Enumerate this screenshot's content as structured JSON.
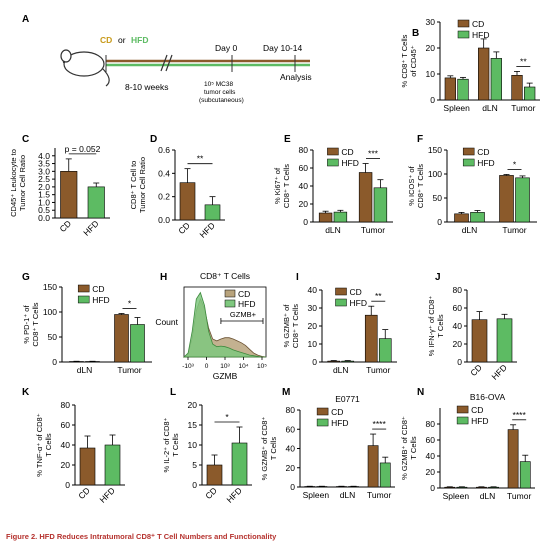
{
  "colors": {
    "cd": "#8B5A2B",
    "hfd": "#5DBB63",
    "sig": "#111111",
    "hist_cd": "#b8a37c",
    "hist_hfd": "#7fc87f",
    "diet_line_cd": "#8B5A2B",
    "diet_line_hfd": "#5DBB63",
    "caption": "#b5322e"
  },
  "schematic": {
    "label": "A",
    "cd": "CD",
    "or": "or",
    "hfd": "HFD",
    "weeks": "8-10 weeks",
    "day0": "Day 0",
    "day_end": "Day 10-14",
    "analysis": "Analysis",
    "cells_line1": "10⁵ MC38",
    "cells_line2": "tumor cells",
    "cells_line3": "(subcutaneous)"
  },
  "caption": {
    "title": "Figure 2.  HFD Reduces Intratumoral CD8⁺ T Cell Numbers and Functionality"
  },
  "chart_data": [
    {
      "panel": "B",
      "type": "bar",
      "ylabel_line1": "% CD8⁺ T Cells",
      "ylabel_line2": "of CD45⁺",
      "categories": [
        "Spleen",
        "dLN",
        "Tumor"
      ],
      "ylim": [
        0,
        30
      ],
      "yticks": [
        0,
        10,
        20,
        30
      ],
      "legend": [
        "CD",
        "HFD"
      ],
      "series": [
        {
          "name": "CD",
          "values": [
            8.5,
            20,
            9.5
          ],
          "errors": [
            0.8,
            3.5,
            1.5
          ]
        },
        {
          "name": "HFD",
          "values": [
            8,
            16,
            5
          ],
          "errors": [
            0.7,
            2.5,
            1.5
          ]
        }
      ],
      "sig": [
        {
          "cat": 2,
          "label": "**"
        }
      ]
    },
    {
      "panel": "C",
      "type": "bar",
      "ylabel_line1": "CD45⁺ Leukocyte to",
      "ylabel_line2": "Tumor Cell Ratio",
      "categories": [
        "CD",
        "HFD"
      ],
      "ylim": [
        0,
        4.5
      ],
      "yticks": [
        0.0,
        0.5,
        1.0,
        1.5,
        2.0,
        2.5,
        3.0,
        3.5,
        4.0
      ],
      "yticklabels": [
        "0.0",
        "0.5",
        "1.0",
        "1.5",
        "2.0",
        "2.5",
        "3.0",
        "3.5",
        "4.0"
      ],
      "values": [
        3.0,
        2.0
      ],
      "errors": [
        0.8,
        0.25
      ],
      "sig": [
        {
          "label": "p = 0.052"
        }
      ]
    },
    {
      "panel": "D",
      "type": "bar",
      "ylabel_line1": "CD8⁺ T Cell to",
      "ylabel_line2": "Tumor Cell Ratio",
      "categories": [
        "CD",
        "HFD"
      ],
      "ylim": [
        0,
        0.6
      ],
      "yticks": [
        0,
        0.2,
        0.4,
        0.6
      ],
      "yticklabels": [
        "0.0",
        "0.2",
        "0.4",
        "0.6"
      ],
      "values": [
        0.32,
        0.13
      ],
      "errors": [
        0.12,
        0.07
      ],
      "sig": [
        {
          "label": "**"
        }
      ]
    },
    {
      "panel": "E",
      "type": "bar",
      "ylabel_line1": "% Ki67⁺ of",
      "ylabel_line2": "CD8⁺ T Cells",
      "categories": [
        "dLN",
        "Tumor"
      ],
      "ylim": [
        0,
        80
      ],
      "yticks": [
        0,
        20,
        40,
        60,
        80
      ],
      "legend": [
        "CD",
        "HFD"
      ],
      "series": [
        {
          "name": "CD",
          "values": [
            10,
            55
          ],
          "errors": [
            2,
            10
          ]
        },
        {
          "name": "HFD",
          "values": [
            11,
            38
          ],
          "errors": [
            2,
            9
          ]
        }
      ],
      "sig": [
        {
          "cat": 1,
          "label": "***"
        }
      ]
    },
    {
      "panel": "F",
      "type": "bar",
      "ylabel_line1": "% ICOS⁺ of",
      "ylabel_line2": "CD8⁺ T Cells",
      "categories": [
        "dLN",
        "Tumor"
      ],
      "ylim": [
        0,
        150
      ],
      "yticks": [
        0,
        50,
        100,
        150
      ],
      "legend": [
        "CD",
        "HFD"
      ],
      "series": [
        {
          "name": "CD",
          "values": [
            17,
            97
          ],
          "errors": [
            3,
            2
          ]
        },
        {
          "name": "HFD",
          "values": [
            20,
            92
          ],
          "errors": [
            4,
            4
          ]
        }
      ],
      "sig": [
        {
          "cat": 1,
          "label": "*"
        }
      ]
    },
    {
      "panel": "G",
      "type": "bar",
      "ylabel_line1": "% PD-1⁺ of",
      "ylabel_line2": "CD8⁺ T Cells",
      "categories": [
        "dLN",
        "Tumor"
      ],
      "ylim": [
        0,
        150
      ],
      "yticks": [
        0,
        50,
        100,
        150
      ],
      "legend": [
        "CD",
        "HFD"
      ],
      "series": [
        {
          "name": "CD",
          "values": [
            1,
            95
          ],
          "errors": [
            0.5,
            2
          ]
        },
        {
          "name": "HFD",
          "values": [
            1,
            75
          ],
          "errors": [
            0.5,
            14
          ]
        }
      ],
      "sig": [
        {
          "cat": 1,
          "label": "*"
        }
      ]
    },
    {
      "panel": "H",
      "type": "area",
      "title": "CD8⁺ T Cells",
      "ylabel": "Count",
      "xlabel": "GZMB",
      "xticks": [
        "-10³",
        "0",
        "10³",
        "10⁴",
        "10⁵"
      ],
      "legend": [
        "CD",
        "HFD"
      ],
      "gate": "GZMB+",
      "x": [
        0,
        0.05,
        0.1,
        0.15,
        0.2,
        0.25,
        0.3,
        0.35,
        0.4,
        0.45,
        0.5,
        0.55,
        0.6,
        0.65,
        0.7,
        0.75,
        0.8,
        0.85,
        0.9,
        0.95,
        1.0
      ],
      "series": [
        {
          "name": "CD",
          "values": [
            0,
            0.05,
            0.3,
            0.72,
            0.9,
            0.75,
            0.45,
            0.28,
            0.25,
            0.28,
            0.3,
            0.3,
            0.28,
            0.25,
            0.22,
            0.18,
            0.12,
            0.06,
            0.03,
            0.01,
            0
          ]
        },
        {
          "name": "HFD",
          "values": [
            0,
            0.06,
            0.4,
            0.9,
            1.0,
            0.8,
            0.4,
            0.2,
            0.16,
            0.17,
            0.16,
            0.14,
            0.11,
            0.09,
            0.07,
            0.05,
            0.03,
            0.02,
            0.01,
            0,
            0
          ]
        }
      ]
    },
    {
      "panel": "I",
      "type": "bar",
      "ylabel_line1": "% GZMB⁺ of",
      "ylabel_line2": "CD8⁺ T Cells",
      "categories": [
        "dLN",
        "Tumor"
      ],
      "ylim": [
        0,
        40
      ],
      "yticks": [
        0,
        10,
        20,
        30,
        40
      ],
      "legend": [
        "CD",
        "HFD"
      ],
      "series": [
        {
          "name": "CD",
          "values": [
            0.5,
            26
          ],
          "errors": [
            0.3,
            5
          ]
        },
        {
          "name": "HFD",
          "values": [
            0.5,
            13
          ],
          "errors": [
            0.3,
            5
          ]
        }
      ],
      "sig": [
        {
          "cat": 1,
          "label": "**"
        }
      ]
    },
    {
      "panel": "J",
      "type": "bar",
      "ylabel_line1": "% IFN-γ⁺ of CD8⁺",
      "ylabel_line2": "T Cells",
      "categories": [
        "CD",
        "HFD"
      ],
      "ylim": [
        0,
        80
      ],
      "yticks": [
        0,
        20,
        40,
        60,
        80
      ],
      "values": [
        47,
        48
      ],
      "errors": [
        9,
        5
      ]
    },
    {
      "panel": "K",
      "type": "bar",
      "ylabel_line1": "% TNF-α⁺ of CD8⁺",
      "ylabel_line2": "T Cells",
      "categories": [
        "CD",
        "HFD"
      ],
      "ylim": [
        0,
        80
      ],
      "yticks": [
        0,
        20,
        40,
        60,
        80
      ],
      "values": [
        37,
        40
      ],
      "errors": [
        12,
        10
      ]
    },
    {
      "panel": "L",
      "type": "bar",
      "ylabel_line1": "% IL-2⁺ of CD8⁺",
      "ylabel_line2": "T Cells",
      "categories": [
        "CD",
        "HFD"
      ],
      "ylim": [
        0,
        20
      ],
      "yticks": [
        0,
        5,
        10,
        15,
        20
      ],
      "values": [
        5,
        10.5
      ],
      "errors": [
        2.5,
        4
      ],
      "sig": [
        {
          "label": "*"
        }
      ]
    },
    {
      "panel": "M",
      "type": "bar",
      "title": "E0771",
      "ylabel_line1": "% GZMB⁺ of CD8⁺",
      "ylabel_line2": "T Cells",
      "categories": [
        "Spleen",
        "dLN",
        "Tumor"
      ],
      "ylim": [
        0,
        80
      ],
      "yticks": [
        0,
        20,
        40,
        60,
        80
      ],
      "legend": [
        "CD",
        "HFD"
      ],
      "series": [
        {
          "name": "CD",
          "values": [
            0.5,
            0.5,
            43
          ],
          "errors": [
            0.3,
            0.3,
            12
          ]
        },
        {
          "name": "HFD",
          "values": [
            0.5,
            0.5,
            25
          ],
          "errors": [
            0.3,
            0.3,
            6
          ]
        }
      ],
      "sig": [
        {
          "cat": 2,
          "label": "****"
        }
      ]
    },
    {
      "panel": "N",
      "type": "bar",
      "title": "B16-OVA",
      "ylabel_line1": "% GZMB⁺ of CD8⁺",
      "ylabel_line2": "T Cells",
      "categories": [
        "Spleen",
        "dLN",
        "Tumor"
      ],
      "ylim": [
        0,
        100
      ],
      "yticks": [
        0,
        20,
        40,
        60,
        80
      ],
      "legend": [
        "CD",
        "HFD"
      ],
      "series": [
        {
          "name": "CD",
          "values": [
            1,
            1,
            73
          ],
          "errors": [
            0.5,
            0.5,
            6
          ]
        },
        {
          "name": "HFD",
          "values": [
            1,
            1,
            33
          ],
          "errors": [
            0.5,
            0.5,
            8
          ]
        }
      ],
      "sig": [
        {
          "cat": 2,
          "label": "****"
        }
      ]
    }
  ]
}
